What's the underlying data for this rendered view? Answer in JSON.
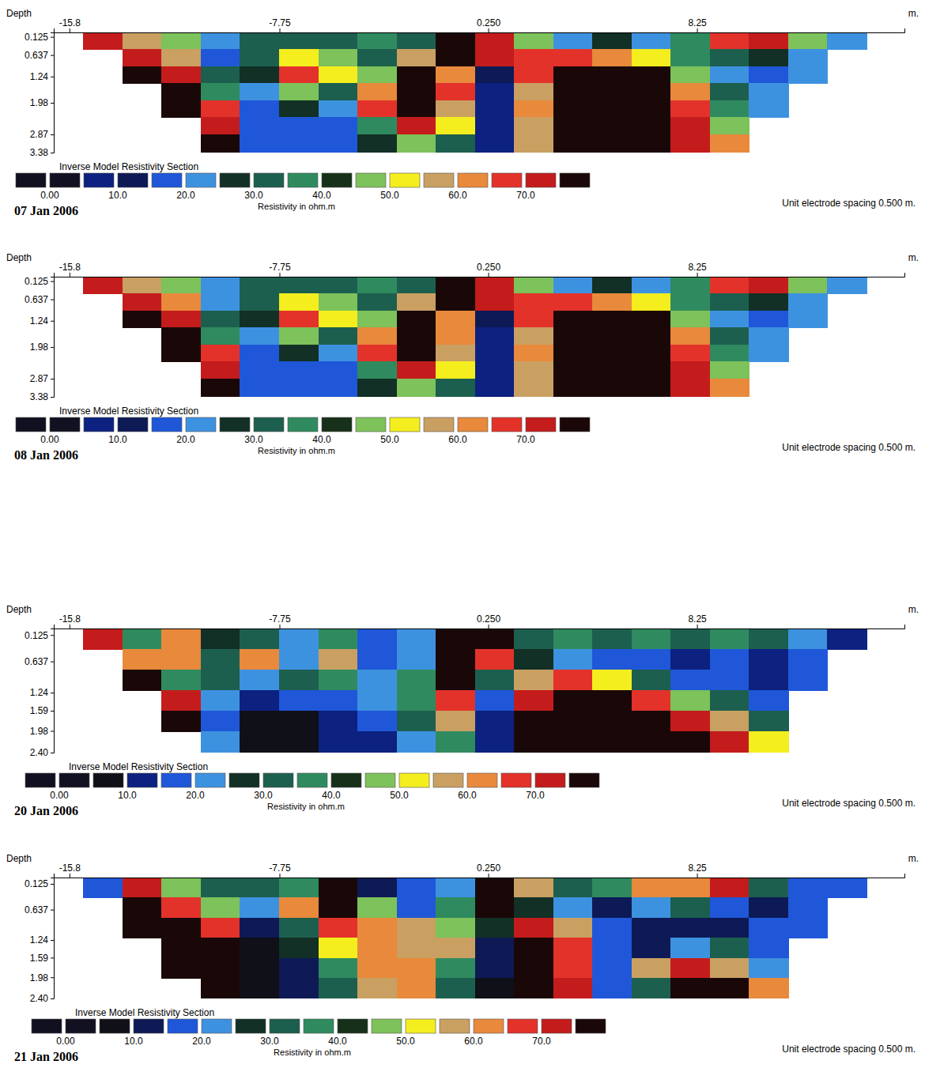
{
  "chart_data": [
    {
      "type": "heatmap",
      "title": "Inverse Model Resistivity Section",
      "date": "07 Jan 2006",
      "y_label": "Depth",
      "x_label": "m.",
      "annotation": "Unit electrode spacing 0.500 m.",
      "xlim": [
        -16.4,
        16.2
      ],
      "xticks": [
        -15.8,
        -7.75,
        {
          "value": 0.25,
          "label": "0.250"
        },
        8.25
      ],
      "ylim": [
        0,
        3.38
      ],
      "yticks": [
        0.125,
        0.637,
        1.24,
        1.98,
        2.87,
        3.38
      ],
      "x": [
        -14.5,
        -13,
        -11.5,
        -10,
        -8.5,
        -7,
        -5.5,
        -4,
        -2.5,
        -1,
        0.5,
        2,
        3.5,
        5,
        6.5,
        8,
        9.5,
        11,
        12.5,
        14
      ],
      "y": [
        0.24,
        0.72,
        1.2,
        1.68,
        2.16,
        2.64,
        3.12
      ],
      "cells": [
        [
          70,
          55,
          48,
          20,
          33,
          30,
          32,
          38,
          33,
          78,
          72,
          45,
          20,
          25,
          22,
          38,
          65,
          72,
          45,
          22
        ],
        [
          null,
          74,
          58,
          18,
          30,
          52,
          46,
          32,
          55,
          78,
          70,
          68,
          66,
          60,
          52,
          35,
          32,
          28,
          22,
          null
        ],
        [
          null,
          78,
          72,
          30,
          25,
          68,
          50,
          46,
          78,
          62,
          10,
          66,
          78,
          78,
          77,
          48,
          20,
          18,
          22,
          null
        ],
        [
          null,
          null,
          78,
          35,
          20,
          46,
          32,
          60,
          78,
          65,
          8,
          58,
          78,
          78,
          78,
          60,
          30,
          20,
          null,
          null
        ],
        [
          null,
          null,
          76,
          68,
          18,
          25,
          20,
          66,
          78,
          55,
          8,
          64,
          78,
          78,
          78,
          66,
          38,
          22,
          null,
          null
        ],
        [
          null,
          null,
          null,
          74,
          18,
          16,
          18,
          35,
          72,
          50,
          8,
          55,
          78,
          78,
          78,
          70,
          46,
          null,
          null,
          null
        ],
        [
          null,
          null,
          null,
          76,
          18,
          15,
          18,
          28,
          46,
          30,
          8,
          58,
          78,
          78,
          75,
          72,
          60,
          null,
          null,
          null
        ]
      ],
      "colorbar": {
        "title": "Resistivity in ohm.m",
        "range": [
          -5,
          80
        ],
        "ticks": [
          {
            "value": 0,
            "label": "0.00"
          },
          {
            "value": 10,
            "label": "10.0"
          },
          {
            "value": 20,
            "label": "20.0"
          },
          {
            "value": 30,
            "label": "30.0"
          },
          {
            "value": 40,
            "label": "40.0"
          },
          {
            "value": 50,
            "label": "50.0"
          },
          {
            "value": 60,
            "label": "60.0"
          },
          {
            "value": 70,
            "label": "70.0"
          }
        ],
        "colors": [
          "#101020",
          "#111122",
          "#0c2180",
          "#0d1a55",
          "#1f57d8",
          "#3d92e0",
          "#123025",
          "#1d5f4e",
          "#2f8b5f",
          "#16301a",
          "#7dc25a",
          "#f4ee1e",
          "#c9a062",
          "#e8893c",
          "#e3322a",
          "#c41c1c",
          "#1a0808"
        ]
      }
    },
    {
      "type": "heatmap",
      "title": "Inverse Model Resistivity Section",
      "date": "08 Jan 2006",
      "y_label": "Depth",
      "x_label": "m.",
      "annotation": "Unit electrode spacing 0.500 m.",
      "xlim": [
        -16.4,
        16.2
      ],
      "xticks": [
        -15.8,
        -7.75,
        {
          "value": 0.25,
          "label": "0.250"
        },
        8.25
      ],
      "ylim": [
        0,
        3.38
      ],
      "yticks": [
        0.125,
        0.637,
        1.24,
        1.98,
        2.87,
        3.38
      ],
      "x": [
        -14.5,
        -13,
        -11.5,
        -10,
        -8.5,
        -7,
        -5.5,
        -4,
        -2.5,
        -1,
        0.5,
        2,
        3.5,
        5,
        6.5,
        8,
        9.5,
        11,
        12.5,
        14
      ],
      "y": [
        0.24,
        0.72,
        1.2,
        1.68,
        2.16,
        2.64,
        3.12
      ],
      "cells": [
        [
          72,
          58,
          46,
          22,
          33,
          30,
          32,
          36,
          33,
          78,
          72,
          46,
          22,
          25,
          22,
          36,
          66,
          72,
          46,
          22
        ],
        [
          null,
          74,
          60,
          20,
          30,
          50,
          46,
          32,
          55,
          78,
          70,
          68,
          66,
          60,
          52,
          35,
          32,
          28,
          22,
          null
        ],
        [
          null,
          78,
          72,
          32,
          25,
          66,
          50,
          46,
          78,
          62,
          10,
          66,
          78,
          78,
          77,
          48,
          22,
          18,
          22,
          null
        ],
        [
          null,
          null,
          78,
          36,
          20,
          46,
          32,
          60,
          78,
          64,
          8,
          58,
          78,
          78,
          78,
          60,
          30,
          20,
          null,
          null
        ],
        [
          null,
          null,
          76,
          68,
          18,
          25,
          20,
          66,
          78,
          55,
          8,
          64,
          78,
          78,
          78,
          66,
          36,
          22,
          null,
          null
        ],
        [
          null,
          null,
          null,
          74,
          18,
          16,
          18,
          35,
          72,
          50,
          8,
          56,
          78,
          78,
          78,
          70,
          46,
          null,
          null,
          null
        ],
        [
          null,
          null,
          null,
          76,
          18,
          15,
          18,
          28,
          46,
          30,
          8,
          58,
          78,
          78,
          76,
          72,
          60,
          null,
          null,
          null
        ]
      ],
      "colorbar": {
        "title": "Resistivity in ohm.m",
        "range": [
          -5,
          80
        ],
        "ticks": [
          {
            "value": 0,
            "label": "0.00"
          },
          {
            "value": 10,
            "label": "10.0"
          },
          {
            "value": 20,
            "label": "20.0"
          },
          {
            "value": 30,
            "label": "30.0"
          },
          {
            "value": 40,
            "label": "40.0"
          },
          {
            "value": 50,
            "label": "50.0"
          },
          {
            "value": 60,
            "label": "60.0"
          },
          {
            "value": 70,
            "label": "70.0"
          }
        ],
        "colors": [
          "#101020",
          "#111122",
          "#0c2180",
          "#0d1a55",
          "#1f57d8",
          "#3d92e0",
          "#123025",
          "#1d5f4e",
          "#2f8b5f",
          "#16301a",
          "#7dc25a",
          "#f4ee1e",
          "#c9a062",
          "#e8893c",
          "#e3322a",
          "#c41c1c",
          "#1a0808"
        ]
      }
    },
    {
      "type": "heatmap",
      "title": "Inverse Model Resistivity Section",
      "date": "20 Jan 2006",
      "y_label": "Depth",
      "x_label": "m.",
      "annotation": "Unit electrode spacing 0.500 m.",
      "xlim": [
        -16.4,
        16.2
      ],
      "xticks": [
        -15.8,
        -7.75,
        {
          "value": 0.25,
          "label": "0.250"
        },
        8.25
      ],
      "ylim": [
        0,
        2.4
      ],
      "yticks": [
        0.125,
        0.637,
        1.24,
        1.59,
        1.98,
        {
          "value": 2.4,
          "label": "2.40"
        }
      ],
      "x": [
        -14.5,
        -13,
        -11.5,
        -10,
        -8.5,
        -7,
        -5.5,
        -4,
        -2.5,
        -1,
        0.5,
        2,
        3.5,
        5,
        6.5,
        8,
        9.5,
        11,
        12.5,
        14
      ],
      "y": [
        0.2,
        0.6,
        1.0,
        1.4,
        1.8,
        2.2
      ],
      "cells": [
        [
          72,
          35,
          62,
          28,
          33,
          20,
          38,
          18,
          20,
          78,
          75,
          32,
          35,
          30,
          35,
          32,
          38,
          30,
          20,
          10
        ],
        [
          null,
          62,
          60,
          32,
          62,
          20,
          55,
          18,
          22,
          78,
          68,
          25,
          20,
          18,
          18,
          14,
          18,
          10,
          18,
          null
        ],
        [
          null,
          78,
          38,
          30,
          22,
          30,
          35,
          20,
          38,
          75,
          30,
          55,
          65,
          50,
          30,
          18,
          15,
          10,
          15,
          null
        ],
        [
          null,
          null,
          72,
          20,
          10,
          15,
          18,
          22,
          38,
          66,
          18,
          74,
          78,
          78,
          68,
          48,
          30,
          18,
          null,
          null
        ],
        [
          null,
          null,
          78,
          15,
          8,
          8,
          12,
          15,
          30,
          58,
          10,
          78,
          78,
          78,
          78,
          70,
          55,
          32,
          null,
          null
        ],
        [
          null,
          null,
          null,
          20,
          8,
          8,
          10,
          12,
          20,
          35,
          10,
          78,
          78,
          78,
          78,
          77,
          70,
          50,
          null,
          null
        ]
      ],
      "colorbar": {
        "title": "Resistivity in ohm.m",
        "range": [
          -5,
          80
        ],
        "ticks": [
          {
            "value": 0,
            "label": "0.00"
          },
          {
            "value": 10,
            "label": "10.0"
          },
          {
            "value": 20,
            "label": "20.0"
          },
          {
            "value": 30,
            "label": "30.0"
          },
          {
            "value": 40,
            "label": "40.0"
          },
          {
            "value": 50,
            "label": "50.0"
          },
          {
            "value": 60,
            "label": "60.0"
          },
          {
            "value": 70,
            "label": "70.0"
          }
        ],
        "colors": [
          "#101020",
          "#111122",
          "#101018",
          "#0c2180",
          "#1f57d8",
          "#3d92e0",
          "#123025",
          "#1d5f4e",
          "#2f8b5f",
          "#16301a",
          "#7dc25a",
          "#f4ee1e",
          "#c9a062",
          "#e8893c",
          "#e3322a",
          "#c41c1c",
          "#1a0808"
        ]
      }
    },
    {
      "type": "heatmap",
      "title": "Inverse Model Resistivity Section",
      "date": "21 Jan 2006",
      "y_label": "Depth",
      "x_label": "m.",
      "annotation": "Unit electrode spacing 0.500 m.",
      "xlim": [
        -16.4,
        16.2
      ],
      "xticks": [
        -15.8,
        -7.75,
        {
          "value": 0.25,
          "label": "0.250"
        },
        8.25
      ],
      "ylim": [
        0,
        2.4
      ],
      "yticks": [
        0.125,
        0.637,
        1.24,
        1.59,
        1.98,
        {
          "value": 2.4,
          "label": "2.40"
        }
      ],
      "x": [
        -14.5,
        -13,
        -11.5,
        -10,
        -8.5,
        -7,
        -5.5,
        -4,
        -2.5,
        -1,
        0.5,
        2,
        3.5,
        5,
        6.5,
        8,
        9.5,
        11,
        12.5,
        14
      ],
      "y": [
        0.2,
        0.6,
        1.0,
        1.4,
        1.8,
        2.2
      ],
      "cells": [
        [
          18,
          72,
          48,
          30,
          33,
          38,
          76,
          10,
          18,
          22,
          78,
          55,
          30,
          35,
          60,
          62,
          70,
          30,
          18,
          15
        ],
        [
          null,
          78,
          66,
          46,
          20,
          60,
          78,
          46,
          18,
          35,
          78,
          25,
          20,
          10,
          22,
          30,
          18,
          12,
          16,
          null
        ],
        [
          null,
          78,
          78,
          66,
          10,
          30,
          68,
          60,
          58,
          46,
          25,
          74,
          55,
          15,
          14,
          10,
          10,
          15,
          18,
          null
        ],
        [
          null,
          null,
          78,
          77,
          8,
          25,
          50,
          62,
          58,
          55,
          10,
          78,
          66,
          15,
          10,
          22,
          30,
          18,
          null,
          null
        ],
        [
          null,
          null,
          78,
          76,
          8,
          10,
          35,
          60,
          62,
          38,
          10,
          78,
          68,
          15,
          55,
          72,
          58,
          20,
          null,
          null
        ],
        [
          null,
          null,
          null,
          76,
          8,
          10,
          30,
          55,
          60,
          30,
          8,
          78,
          72,
          18,
          30,
          78,
          76,
          60,
          null,
          null
        ]
      ],
      "colorbar": {
        "title": "Resistivity in ohm.m",
        "range": [
          -5,
          80
        ],
        "ticks": [
          {
            "value": 0,
            "label": "0.00"
          },
          {
            "value": 10,
            "label": "10.0"
          },
          {
            "value": 20,
            "label": "20.0"
          },
          {
            "value": 30,
            "label": "30.0"
          },
          {
            "value": 40,
            "label": "40.0"
          },
          {
            "value": 50,
            "label": "50.0"
          },
          {
            "value": 60,
            "label": "60.0"
          },
          {
            "value": 70,
            "label": "70.0"
          }
        ],
        "colors": [
          "#101020",
          "#111122",
          "#101018",
          "#0d1a55",
          "#1f57d8",
          "#3d92e0",
          "#123025",
          "#1d5f4e",
          "#2f8b5f",
          "#16301a",
          "#7dc25a",
          "#f4ee1e",
          "#c9a062",
          "#e8893c",
          "#e3322a",
          "#c41c1c",
          "#1a0808"
        ]
      }
    }
  ]
}
